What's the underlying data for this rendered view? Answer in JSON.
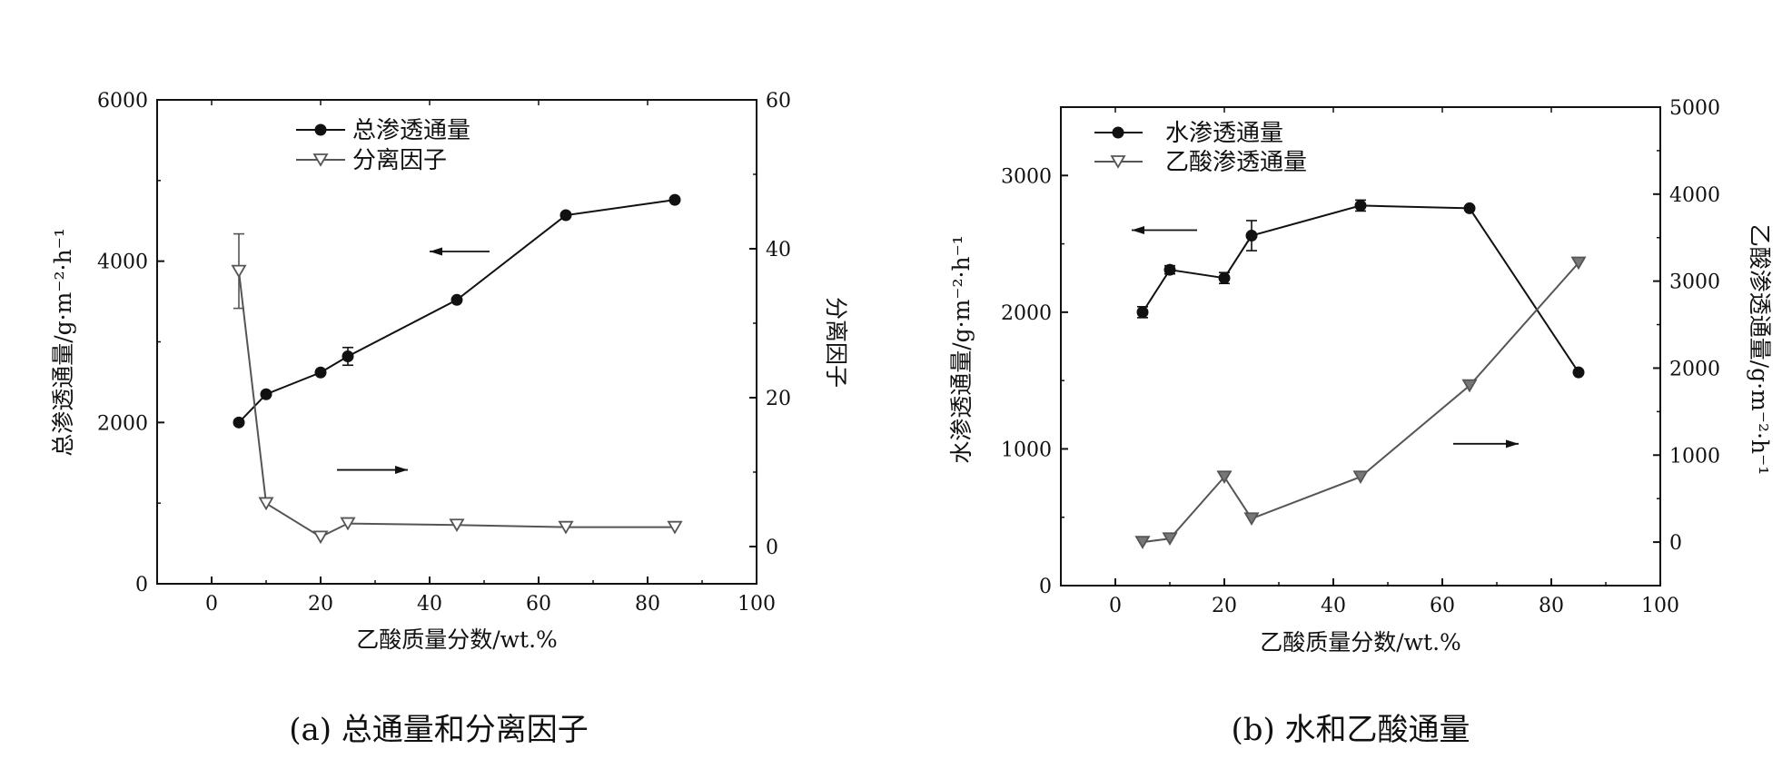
{
  "figure": {
    "captions": [
      "(a) 总通量和分离因子",
      "(b) 水和乙酸通量"
    ]
  },
  "chart_data": [
    {
      "type": "line",
      "panel": "a",
      "xlabel": "乙酸质量分数/wt.%",
      "xlim": [
        -10,
        100
      ],
      "xticks": [
        0,
        20,
        40,
        60,
        80,
        100
      ],
      "ylabel_left": "总渗透通量/g·m⁻²·h⁻¹",
      "ylim_left": [
        0,
        6000
      ],
      "yticks_left": [
        0,
        2000,
        4000,
        6000
      ],
      "ylabel_right": "分离因子",
      "ylim_right": [
        -5,
        60
      ],
      "yticks_right": [
        0,
        20,
        40,
        60
      ],
      "legend": "top-left",
      "series": [
        {
          "name": "总渗透通量",
          "axis": "left",
          "marker": "circle",
          "color": "#111111",
          "x": [
            5,
            10,
            20,
            25,
            45,
            65,
            85
          ],
          "y": [
            2000,
            2350,
            2620,
            2820,
            3520,
            4570,
            4760
          ],
          "err": [
            0,
            0,
            0,
            110,
            0,
            0,
            0
          ]
        },
        {
          "name": "分离因子",
          "axis": "right",
          "marker": "triangle-down",
          "color": "#555555",
          "x": [
            5,
            10,
            20,
            25,
            45,
            65,
            85
          ],
          "y": [
            37,
            5.8,
            1.3,
            3.1,
            2.9,
            2.6,
            2.6
          ],
          "err": [
            5,
            0,
            0,
            0,
            0,
            0,
            0
          ]
        }
      ],
      "annotations": [
        {
          "type": "arrow",
          "direction": "left",
          "axis": "left",
          "x_from": 51,
          "x_to": 40,
          "y": 4120
        },
        {
          "type": "arrow",
          "direction": "right",
          "axis": "right",
          "x_from": 23,
          "x_to": 36,
          "y": 10.3
        }
      ]
    },
    {
      "type": "line",
      "panel": "b",
      "xlabel": "乙酸质量分数/wt.%",
      "xlim": [
        -10,
        100
      ],
      "xticks": [
        0,
        20,
        40,
        60,
        80,
        100
      ],
      "ylabel_left": "水渗透通量/g·m⁻²·h⁻¹",
      "ylim_left": [
        0,
        3500
      ],
      "yticks_left": [
        0,
        1000,
        2000,
        3000
      ],
      "ylabel_right": "乙酸渗透通量/g·m⁻²·h⁻¹",
      "ylim_right": [
        -500,
        5000
      ],
      "yticks_right": [
        0,
        1000,
        2000,
        3000,
        4000,
        5000
      ],
      "legend": "top-left",
      "series": [
        {
          "name": "水渗透通量",
          "axis": "left",
          "marker": "circle",
          "color": "#111111",
          "x": [
            5,
            10,
            20,
            25,
            45,
            65,
            85
          ],
          "y": [
            2000,
            2310,
            2250,
            2560,
            2780,
            2760,
            1560
          ],
          "err": [
            40,
            30,
            40,
            110,
            40,
            0,
            0
          ]
        },
        {
          "name": "乙酸渗透通量",
          "axis": "right",
          "marker": "triangle-down",
          "color": "#555555",
          "x": [
            5,
            10,
            20,
            25,
            45,
            65,
            85
          ],
          "y": [
            0,
            40,
            750,
            270,
            750,
            1800,
            3210
          ],
          "err": [
            0,
            0,
            0,
            0,
            0,
            0,
            0
          ]
        }
      ],
      "annotations": [
        {
          "type": "arrow",
          "direction": "left",
          "axis": "left",
          "x_from": 15,
          "x_to": 3,
          "y": 2600
        },
        {
          "type": "arrow",
          "direction": "right",
          "axis": "right",
          "x_from": 62,
          "x_to": 74,
          "y": 1130
        }
      ]
    }
  ]
}
